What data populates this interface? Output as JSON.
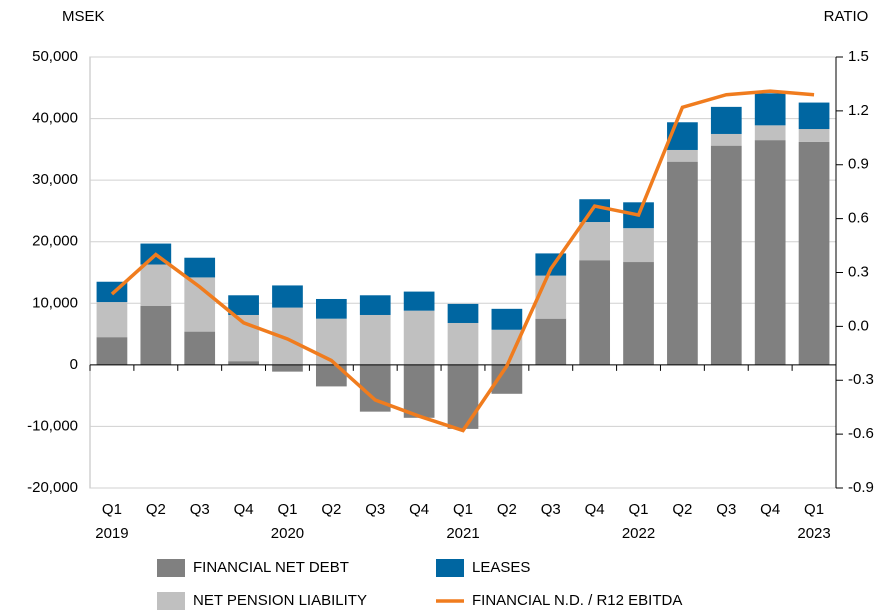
{
  "chart_data": {
    "type": "bar",
    "stacked": true,
    "y_label": "MSEK",
    "y2_label": "RATIO",
    "categories": [
      "Q1",
      "Q2",
      "Q3",
      "Q4",
      "Q1",
      "Q2",
      "Q3",
      "Q4",
      "Q1",
      "Q2",
      "Q3",
      "Q4",
      "Q1",
      "Q2",
      "Q3",
      "Q4",
      "Q1"
    ],
    "year_labels": [
      "2019",
      null,
      null,
      null,
      "2020",
      null,
      null,
      null,
      "2021",
      null,
      null,
      null,
      "2022",
      null,
      null,
      null,
      "2023"
    ],
    "series": [
      {
        "name": "FINANCIAL NET DEBT",
        "color": "#808080",
        "values": [
          4500,
          9600,
          5400,
          600,
          -1100,
          -3500,
          -7600,
          -8600,
          -10400,
          -4700,
          7500,
          17000,
          16700,
          33000,
          35600,
          36500,
          36200
        ]
      },
      {
        "name": "NET PENSION LIABILITY",
        "color": "#c0c0c0",
        "values": [
          5700,
          6700,
          8800,
          7500,
          9300,
          7500,
          8100,
          8800,
          6800,
          5700,
          7000,
          6200,
          5500,
          1900,
          1900,
          2400,
          2100
        ]
      },
      {
        "name": "LEASES",
        "color": "#0066a1",
        "values": [
          3300,
          3400,
          3200,
          3200,
          3600,
          3200,
          3200,
          3100,
          3100,
          3400,
          3600,
          3700,
          4200,
          4500,
          4400,
          5200,
          4300
        ]
      },
      {
        "name": "FINANCIAL N.D. / R12 EBITDA",
        "color": "#f07c1e",
        "type": "line",
        "axis": "y2",
        "values": [
          0.18,
          0.4,
          0.22,
          0.02,
          -0.07,
          -0.19,
          -0.41,
          -0.5,
          -0.58,
          -0.22,
          0.32,
          0.67,
          0.62,
          1.22,
          1.29,
          1.31,
          1.29
        ]
      }
    ],
    "ylim": [
      -20000,
      50000
    ],
    "yticks": [
      {
        "value": -20000,
        "label": "-20,000"
      },
      {
        "value": -10000,
        "label": "-10,000"
      },
      0,
      {
        "value": 10000,
        "label": "10,000"
      },
      {
        "value": 20000,
        "label": "20,000"
      },
      {
        "value": 30000,
        "label": "30,000"
      },
      {
        "value": 40000,
        "label": "40,000"
      },
      {
        "value": 50000,
        "label": "50,000"
      }
    ],
    "y2lim": [
      -0.9,
      1.5
    ],
    "y2ticks": [
      -0.9,
      -0.6,
      -0.3,
      {
        "value": 0,
        "label": "0.0"
      },
      0.3,
      0.6,
      0.9,
      1.2,
      1.5
    ],
    "grid": true,
    "legend": "bottom"
  }
}
